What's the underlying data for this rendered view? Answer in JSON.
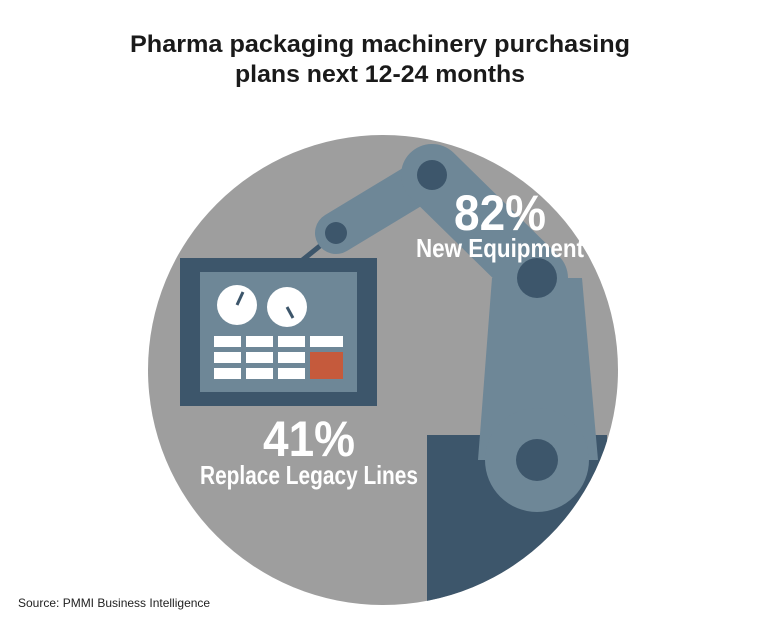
{
  "title_lines": [
    "Pharma packaging machinery purchasing",
    "plans next 12-24 months"
  ],
  "stats": [
    {
      "value": "82%",
      "label": "New Equipment"
    },
    {
      "value": "41%",
      "label": "Replace Legacy Lines"
    }
  ],
  "source": "Source: PMMI Business Intelligence"
}
